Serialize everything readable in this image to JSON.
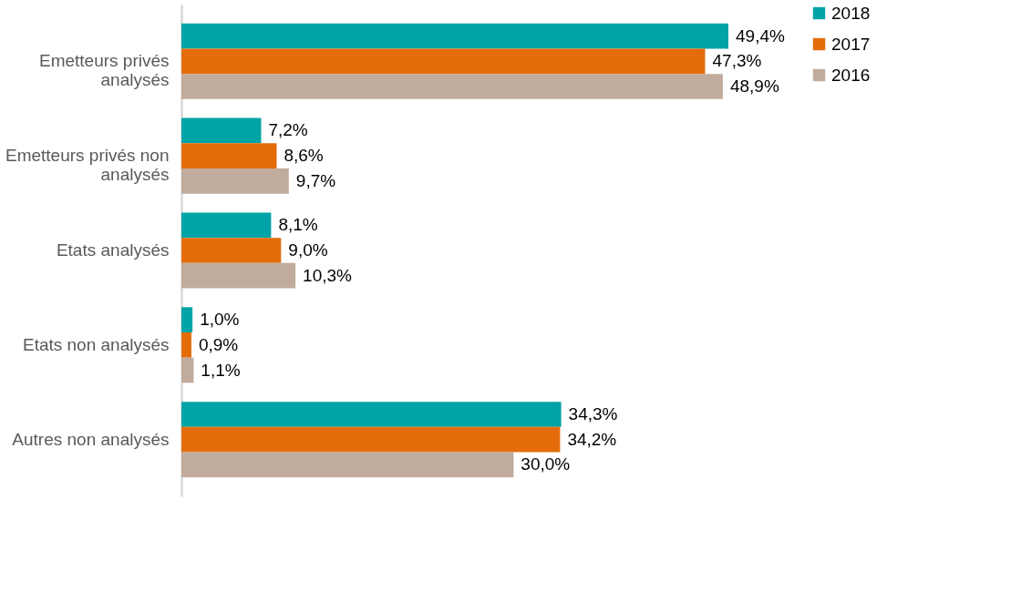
{
  "chart_data": {
    "type": "bar",
    "orientation": "horizontal",
    "legend": "right",
    "grid": false,
    "categories": [
      "Emetteurs privés analysés",
      "Emetteurs privés non analysés",
      "Etats analysés",
      "Etats non analysés",
      "Autres non analysés"
    ],
    "series": [
      {
        "name": "2018",
        "color": "#00a3a6",
        "values": [
          49.4,
          7.2,
          8.1,
          1.0,
          34.3
        ],
        "value_labels": [
          "49,4%",
          "7,2%",
          "8,1%",
          "1,0%",
          "34,3%"
        ]
      },
      {
        "name": "2017",
        "color": "#e46c0a",
        "values": [
          47.3,
          8.6,
          9.0,
          0.9,
          34.2
        ],
        "value_labels": [
          "47,3%",
          "8,6%",
          "9,0%",
          "0,9%",
          "34,2%"
        ]
      },
      {
        "name": "2016",
        "color": "#c0ab9c",
        "values": [
          48.9,
          9.7,
          10.3,
          1.1,
          30.0
        ],
        "value_labels": [
          "48,9%",
          "9,7%",
          "10,3%",
          "1,1%",
          "30,0%"
        ]
      }
    ]
  }
}
